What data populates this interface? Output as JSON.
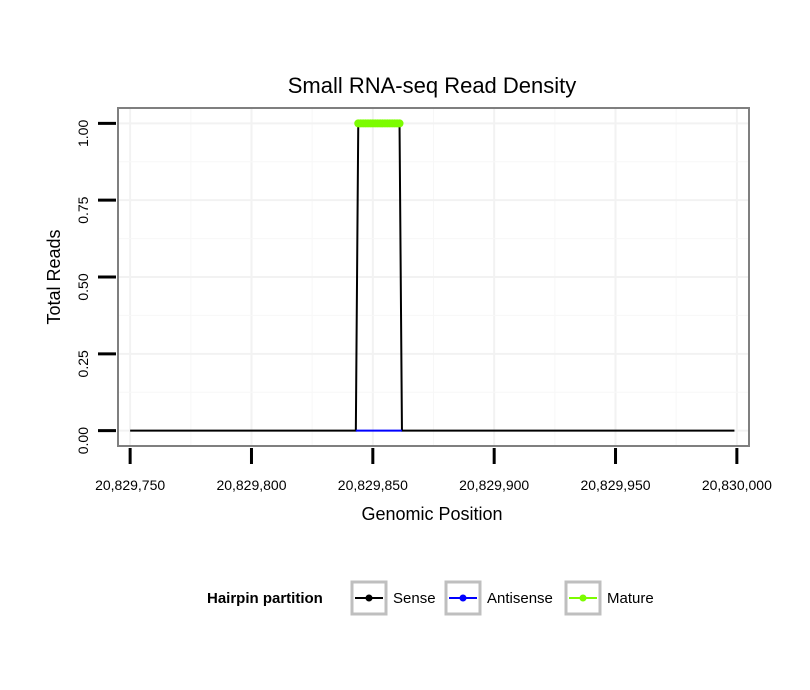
{
  "chart_data": {
    "type": "line",
    "title": "Small RNA-seq Read Density",
    "xlabel": "Genomic Position",
    "ylabel": "Total Reads",
    "xlim": [
      20829745,
      20830005
    ],
    "ylim": [
      -0.05,
      1.05
    ],
    "x_ticks": [
      20829750,
      20829800,
      20829850,
      20829900,
      20829950,
      20830000
    ],
    "x_tick_labels": [
      "20,829,750",
      "20,829,800",
      "20,829,850",
      "20,829,900",
      "20,829,950",
      "20,830,000"
    ],
    "y_ticks": [
      0,
      0.25,
      0.5,
      0.75,
      1
    ],
    "y_tick_labels": [
      "0.00",
      "0.25",
      "0.50",
      "0.75",
      "1.00"
    ],
    "legend": {
      "title": "Hairpin partition",
      "position": "bottom",
      "entries": [
        {
          "name": "Sense",
          "color": "#000000"
        },
        {
          "name": "Antisense",
          "color": "#0000ff"
        },
        {
          "name": "Mature",
          "color": "#7cfc00"
        }
      ]
    },
    "series": [
      {
        "name": "Sense",
        "color": "#000000",
        "x": [
          20829750,
          20829843,
          20829844,
          20829861,
          20829862,
          20829999
        ],
        "y": [
          0,
          0,
          1,
          1,
          0,
          0
        ]
      },
      {
        "name": "Antisense",
        "color": "#0000ff",
        "x": [
          20829843,
          20829862
        ],
        "y": [
          0,
          0
        ]
      },
      {
        "name": "Mature",
        "color": "#7cfc00",
        "x": [
          20829844,
          20829845,
          20829846,
          20829847,
          20829848,
          20829849,
          20829850,
          20829851,
          20829852,
          20829853,
          20829854,
          20829855,
          20829856,
          20829857,
          20829858,
          20829859,
          20829860,
          20829861
        ],
        "y": [
          1,
          1,
          1,
          1,
          1,
          1,
          1,
          1,
          1,
          1,
          1,
          1,
          1,
          1,
          1,
          1,
          1,
          1
        ]
      }
    ]
  }
}
